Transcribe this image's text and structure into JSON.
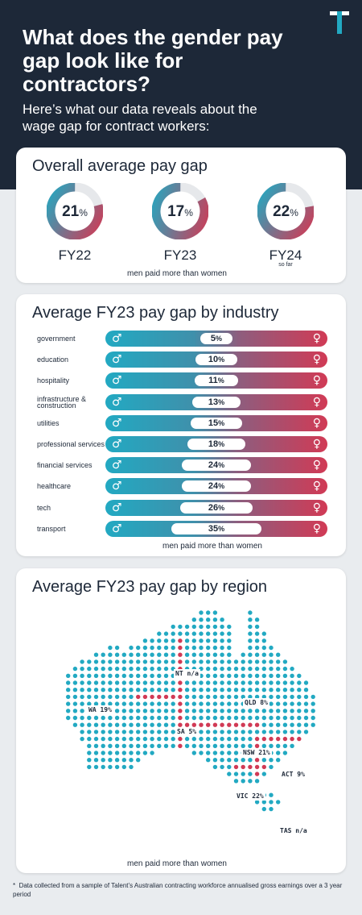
{
  "header": {
    "title": "What does the gender pay gap look like for contractors?",
    "subtitle": "Here’s what our data reveals about the wage gap for contract workers:"
  },
  "colors": {
    "male": "#22a9c2",
    "female": "#d13a55",
    "navy": "#1d2838",
    "ring_bg": "#e6e8eb"
  },
  "overall": {
    "title": "Overall average pay gap",
    "caption": "men paid more than women",
    "items": [
      {
        "value": 21,
        "value_text": "21",
        "unit": "%",
        "label": "FY22",
        "note": ""
      },
      {
        "value": 17,
        "value_text": "17",
        "unit": "%",
        "label": "FY23",
        "note": ""
      },
      {
        "value": 22,
        "value_text": "22",
        "unit": "%",
        "label": "FY24",
        "note": "so far"
      }
    ]
  },
  "industry": {
    "title": "Average FY23 pay gap by industry",
    "caption": "men paid more than women",
    "male_symbol": "♂",
    "female_symbol": "♀",
    "unit": "%"
  },
  "region": {
    "title": "Average FY23 pay gap by region",
    "caption": "men paid more than women",
    "labels": [
      {
        "id": "nt",
        "text": "NT n/a"
      },
      {
        "id": "wa",
        "text": "WA 19%"
      },
      {
        "id": "qld",
        "text": "QLD 8%"
      },
      {
        "id": "sa",
        "text": "SA 5%"
      },
      {
        "id": "nsw",
        "text": "NSW 21%"
      },
      {
        "id": "act",
        "text": "ACT 9%"
      },
      {
        "id": "vic",
        "text": "VIC 22%"
      },
      {
        "id": "tas",
        "text": "TAS n/a"
      }
    ]
  },
  "footnote": {
    "marker": "*",
    "text": "Data collected from a sample of Talent’s Australian contracting workforce annualised gross earnings over a 3 year period"
  },
  "chart_data": [
    {
      "type": "pie",
      "title": "Overall average pay gap",
      "categories": [
        "FY22",
        "FY23",
        "FY24"
      ],
      "values": [
        21,
        17,
        22
      ],
      "unit": "%",
      "annotations": [
        "so far",
        "men paid more than women"
      ]
    },
    {
      "type": "bar",
      "title": "Average FY23 pay gap by industry",
      "categories": [
        "government",
        "education",
        "hospitality",
        "infrastructure & construction",
        "utilities",
        "professional services",
        "financial services",
        "healthcare",
        "tech",
        "transport"
      ],
      "values": [
        5,
        10,
        11,
        13,
        15,
        18,
        24,
        24,
        26,
        35
      ],
      "unit": "%",
      "annotations": [
        "men paid more than women"
      ]
    },
    {
      "type": "table",
      "title": "Average FY23 pay gap by region",
      "categories": [
        "NT",
        "WA",
        "QLD",
        "SA",
        "NSW",
        "ACT",
        "VIC",
        "TAS"
      ],
      "values": [
        "n/a",
        "19%",
        "8%",
        "5%",
        "21%",
        "9%",
        "22%",
        "n/a"
      ],
      "annotations": [
        "men paid more than women"
      ]
    }
  ]
}
